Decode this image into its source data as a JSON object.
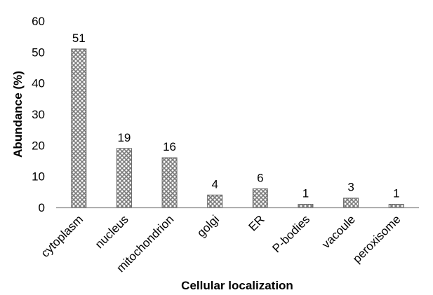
{
  "chart_data": {
    "type": "bar",
    "categories": [
      "cytoplasm",
      "nucleus",
      "mitochondrion",
      "golgi",
      "ER",
      "P-bodies",
      "vacoule",
      "peroxisome"
    ],
    "values": [
      51,
      19,
      16,
      4,
      6,
      1,
      3,
      1
    ],
    "data_labels": [
      "51",
      "19",
      "16",
      "4",
      "6",
      "1",
      "3",
      "1"
    ],
    "xlabel": "Cellular localization",
    "ylabel": "Abundance (%)",
    "ylim": [
      0,
      60
    ],
    "yticks": [
      0,
      10,
      20,
      30,
      40,
      50,
      60
    ],
    "grid": false,
    "legend": "none",
    "bar_pattern": "crosshatch",
    "colors": {
      "bar_fill": "#8a8a8a",
      "bar_edge": "#666666",
      "axis": "#8c8c8c"
    }
  }
}
